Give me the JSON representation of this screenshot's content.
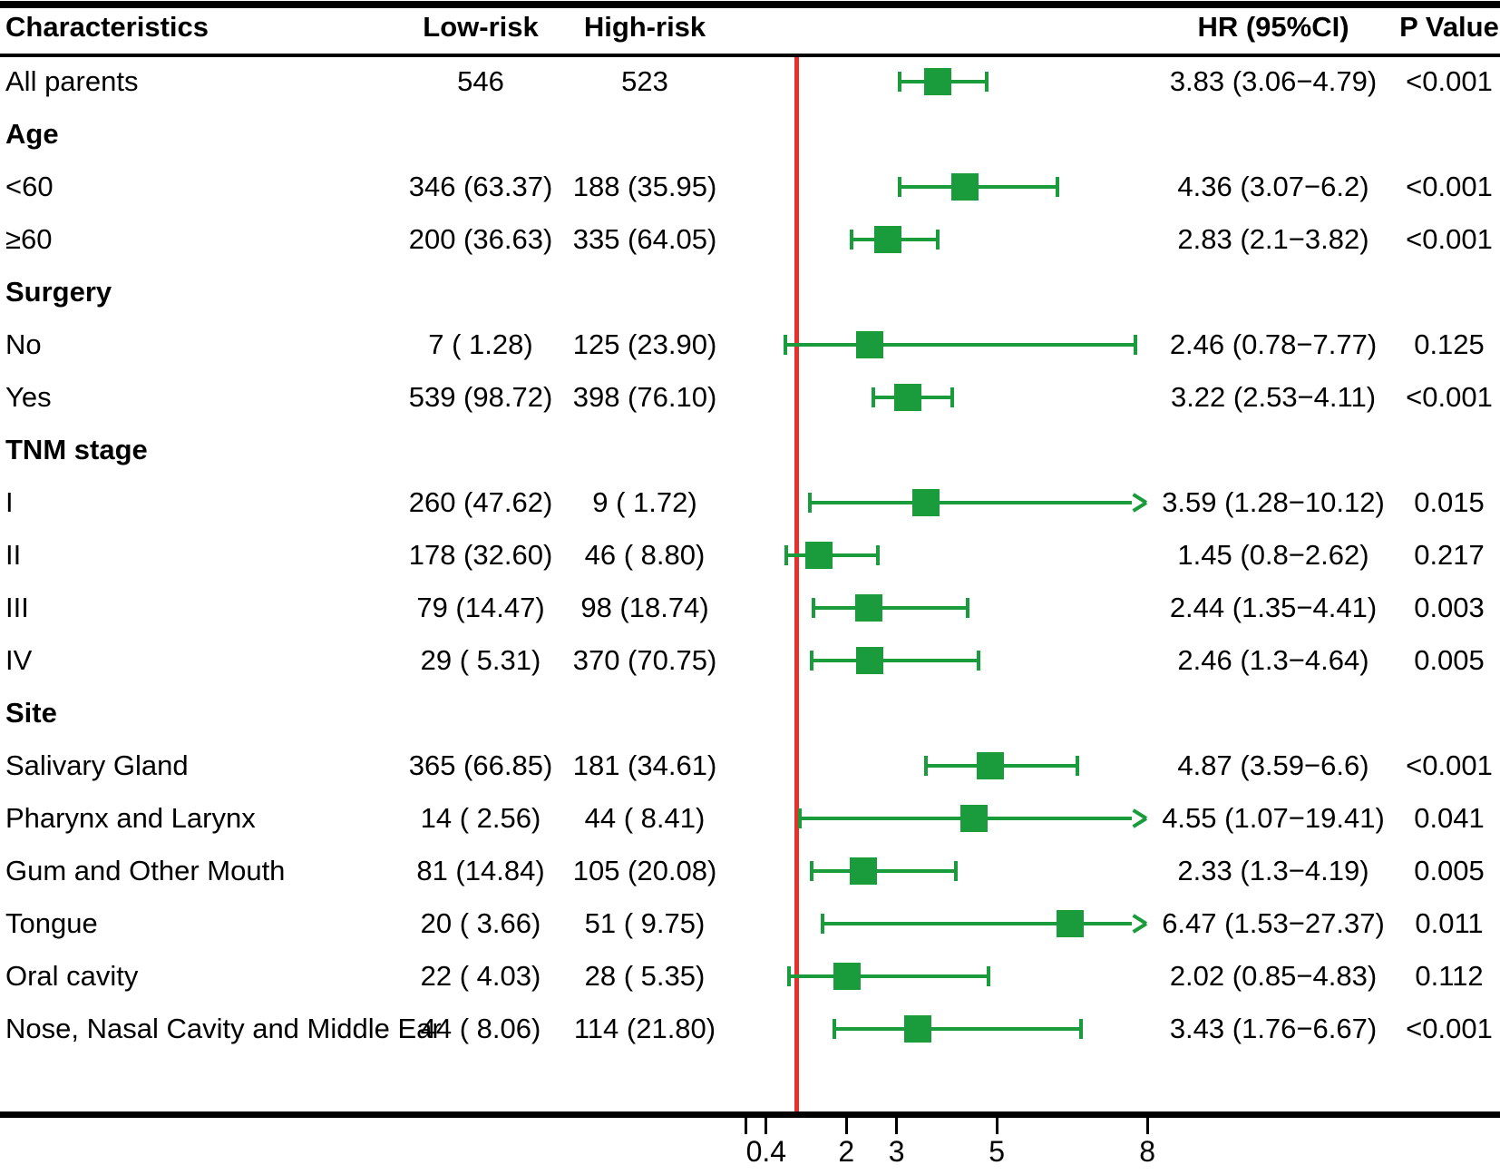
{
  "figure": {
    "type": "forest-plot",
    "columns": {
      "characteristics": "Characteristics",
      "low_risk": "Low-risk",
      "high_risk": "High-risk",
      "hr_ci": "HR (95%CI)",
      "p_value": "P Value"
    }
  },
  "chart_data": {
    "type": "forest",
    "title": "",
    "xlabel": "",
    "scale": "linear",
    "axis": {
      "ref_line_value": 1,
      "clip_max": 7.95,
      "ticks": [
        0,
        0.4,
        2,
        3,
        5,
        8
      ],
      "tick_labels": [
        "",
        "0.4",
        "2",
        "3",
        "5",
        "8"
      ]
    },
    "colors": {
      "marker_green": "#1a9c3c",
      "ref_line_red": "#e8312a",
      "text_black": "#000000",
      "background": "#ffffff"
    },
    "rows": [
      {
        "type": "data",
        "label": "All parents",
        "low": "546",
        "high": "523",
        "hr": 3.83,
        "lo": 3.06,
        "hi": 4.79,
        "hr_text": "3.83 (3.06−4.79)",
        "p": "<0.001"
      },
      {
        "type": "section",
        "label": "Age"
      },
      {
        "type": "data",
        "label": "<60",
        "low": "346 (63.37)",
        "high": "188 (35.95)",
        "hr": 4.36,
        "lo": 3.07,
        "hi": 6.2,
        "hr_text": "4.36 (3.07−6.2)",
        "p": "<0.001"
      },
      {
        "type": "data",
        "label": "≥60",
        "low": "200 (36.63)",
        "high": "335 (64.05)",
        "hr": 2.83,
        "lo": 2.1,
        "hi": 3.82,
        "hr_text": "2.83 (2.1−3.82)",
        "p": "<0.001"
      },
      {
        "type": "section",
        "label": "Surgery"
      },
      {
        "type": "data",
        "label": "No",
        "low": "7 ( 1.28)",
        "high": "125 (23.90)",
        "hr": 2.46,
        "lo": 0.78,
        "hi": 7.77,
        "hr_text": "2.46 (0.78−7.77)",
        "p": "0.125"
      },
      {
        "type": "data",
        "label": "Yes",
        "low": "539 (98.72)",
        "high": "398 (76.10)",
        "hr": 3.22,
        "lo": 2.53,
        "hi": 4.11,
        "hr_text": "3.22 (2.53−4.11)",
        "p": "<0.001"
      },
      {
        "type": "section",
        "label": "TNM stage"
      },
      {
        "type": "data",
        "label": "I",
        "low": "260 (47.62)",
        "high": "9 ( 1.72)",
        "hr": 3.59,
        "lo": 1.28,
        "hi": 10.12,
        "hr_text": "3.59 (1.28−10.12)",
        "p": "0.015"
      },
      {
        "type": "data",
        "label": "II",
        "low": "178 (32.60)",
        "high": "46 ( 8.80)",
        "hr": 1.45,
        "lo": 0.8,
        "hi": 2.62,
        "hr_text": "1.45 (0.8−2.62)",
        "p": "0.217"
      },
      {
        "type": "data",
        "label": "III",
        "low": "79 (14.47)",
        "high": "98 (18.74)",
        "hr": 2.44,
        "lo": 1.35,
        "hi": 4.41,
        "hr_text": "2.44 (1.35−4.41)",
        "p": "0.003"
      },
      {
        "type": "data",
        "label": "IV",
        "low": "29 ( 5.31)",
        "high": "370 (70.75)",
        "hr": 2.46,
        "lo": 1.3,
        "hi": 4.64,
        "hr_text": "2.46 (1.3−4.64)",
        "p": "0.005"
      },
      {
        "type": "section",
        "label": "Site"
      },
      {
        "type": "data",
        "label": "Salivary Gland",
        "low": "365 (66.85)",
        "high": "181 (34.61)",
        "hr": 4.87,
        "lo": 3.59,
        "hi": 6.6,
        "hr_text": "4.87 (3.59−6.6)",
        "p": "<0.001"
      },
      {
        "type": "data",
        "label": "Pharynx and Larynx",
        "low": "14 ( 2.56)",
        "high": "44 ( 8.41)",
        "hr": 4.55,
        "lo": 1.07,
        "hi": 19.41,
        "hr_text": "4.55 (1.07−19.41)",
        "p": "0.041"
      },
      {
        "type": "data",
        "label": "Gum and Other Mouth",
        "low": "81 (14.84)",
        "high": "105 (20.08)",
        "hr": 2.33,
        "lo": 1.3,
        "hi": 4.19,
        "hr_text": "2.33 (1.3−4.19)",
        "p": "0.005"
      },
      {
        "type": "data",
        "label": "Tongue",
        "low": "20 ( 3.66)",
        "high": "51 ( 9.75)",
        "hr": 6.47,
        "lo": 1.53,
        "hi": 27.37,
        "hr_text": "6.47 (1.53−27.37)",
        "p": "0.011"
      },
      {
        "type": "data",
        "label": "Oral cavity",
        "low": "22 ( 4.03)",
        "high": "28 ( 5.35)",
        "hr": 2.02,
        "lo": 0.85,
        "hi": 4.83,
        "hr_text": "2.02 (0.85−4.83)",
        "p": "0.112"
      },
      {
        "type": "data",
        "label": "Nose, Nasal Cavity and Middle Ear",
        "low": "44 ( 8.06)",
        "high": "114 (21.80)",
        "hr": 3.43,
        "lo": 1.76,
        "hi": 6.67,
        "hr_text": "3.43 (1.76−6.67)",
        "p": "<0.001"
      }
    ]
  }
}
